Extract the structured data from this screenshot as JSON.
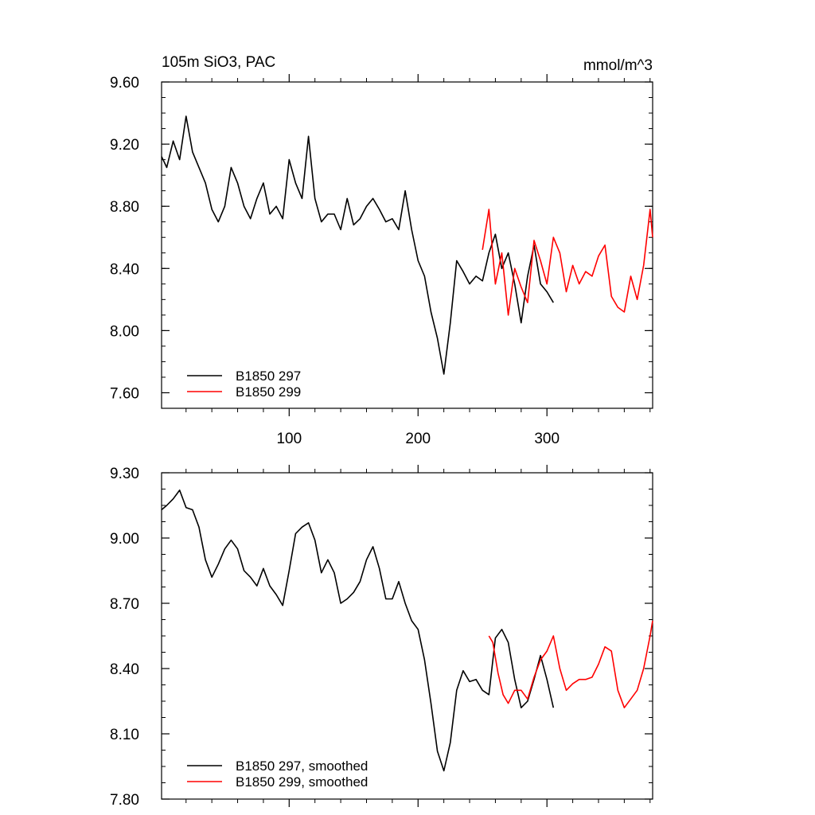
{
  "chart_data": [
    {
      "type": "line",
      "title": "105m SiO3, PAC",
      "units": "mmol/m^3",
      "xlim": [
        1,
        382
      ],
      "ylim": [
        7.5,
        9.6
      ],
      "yticks": [
        7.6,
        8.0,
        8.4,
        8.8,
        9.2,
        9.6
      ],
      "ytick_labels": [
        "7.60",
        "8.00",
        "8.40",
        "8.80",
        "9.20",
        "9.60"
      ],
      "xticks": [
        100,
        200,
        300
      ],
      "xtick_labels": [
        "100",
        "200",
        "300"
      ],
      "legend_position": "bottom-left",
      "series": [
        {
          "name": "B1850 297",
          "color": "#000000",
          "x": [
            1,
            5,
            10,
            15,
            20,
            25,
            30,
            35,
            40,
            45,
            50,
            55,
            60,
            65,
            70,
            75,
            80,
            85,
            90,
            95,
            100,
            105,
            110,
            115,
            120,
            125,
            130,
            135,
            140,
            145,
            150,
            155,
            160,
            165,
            170,
            175,
            180,
            185,
            190,
            195,
            200,
            205,
            210,
            215,
            220,
            225,
            230,
            235,
            240,
            245,
            250,
            255,
            260,
            265,
            270,
            275,
            280,
            285,
            290,
            295,
            300,
            305
          ],
          "y": [
            9.12,
            9.05,
            9.22,
            9.1,
            9.38,
            9.15,
            9.05,
            8.95,
            8.78,
            8.7,
            8.8,
            9.05,
            8.95,
            8.8,
            8.72,
            8.85,
            8.95,
            8.75,
            8.8,
            8.72,
            9.1,
            8.95,
            8.85,
            9.25,
            8.85,
            8.7,
            8.75,
            8.75,
            8.65,
            8.85,
            8.68,
            8.72,
            8.8,
            8.85,
            8.78,
            8.7,
            8.72,
            8.65,
            8.9,
            8.65,
            8.45,
            8.35,
            8.12,
            7.95,
            7.72,
            8.05,
            8.45,
            8.38,
            8.3,
            8.35,
            8.32,
            8.5,
            8.62,
            8.4,
            8.5,
            8.3,
            8.05,
            8.35,
            8.55,
            8.3,
            8.25,
            8.18
          ]
        },
        {
          "name": "B1850 299",
          "color": "#ff0000",
          "x": [
            250,
            255,
            260,
            265,
            270,
            275,
            280,
            285,
            290,
            295,
            300,
            305,
            310,
            315,
            320,
            325,
            330,
            335,
            340,
            345,
            350,
            355,
            360,
            365,
            370,
            375,
            380,
            382
          ],
          "y": [
            8.52,
            8.78,
            8.3,
            8.5,
            8.1,
            8.4,
            8.28,
            8.18,
            8.58,
            8.45,
            8.3,
            8.6,
            8.5,
            8.25,
            8.42,
            8.3,
            8.38,
            8.35,
            8.48,
            8.55,
            8.22,
            8.15,
            8.12,
            8.35,
            8.2,
            8.42,
            8.78,
            8.6
          ]
        }
      ]
    },
    {
      "type": "line",
      "xlim": [
        1,
        382
      ],
      "ylim": [
        7.8,
        9.3
      ],
      "yticks": [
        7.8,
        8.1,
        8.4,
        8.7,
        9.0,
        9.3
      ],
      "ytick_labels": [
        "7.80",
        "8.10",
        "8.40",
        "8.70",
        "9.00",
        "9.30"
      ],
      "xticks": [
        100,
        200,
        300
      ],
      "legend_position": "bottom-left",
      "series": [
        {
          "name": "B1850 297, smoothed",
          "color": "#000000",
          "x": [
            1,
            5,
            10,
            15,
            20,
            25,
            30,
            35,
            40,
            45,
            50,
            55,
            60,
            65,
            70,
            75,
            80,
            85,
            90,
            95,
            100,
            105,
            110,
            115,
            120,
            125,
            130,
            135,
            140,
            145,
            150,
            155,
            160,
            165,
            170,
            175,
            180,
            185,
            190,
            195,
            200,
            205,
            210,
            215,
            220,
            225,
            230,
            235,
            240,
            245,
            250,
            255,
            260,
            265,
            270,
            275,
            280,
            285,
            290,
            295,
            300,
            305
          ],
          "y": [
            9.13,
            9.15,
            9.18,
            9.22,
            9.14,
            9.13,
            9.05,
            8.9,
            8.82,
            8.88,
            8.95,
            8.99,
            8.95,
            8.85,
            8.82,
            8.78,
            8.86,
            8.78,
            8.74,
            8.69,
            8.85,
            9.02,
            9.05,
            9.07,
            8.99,
            8.84,
            8.9,
            8.84,
            8.7,
            8.72,
            8.75,
            8.8,
            8.9,
            8.96,
            8.86,
            8.72,
            8.72,
            8.8,
            8.7,
            8.62,
            8.58,
            8.44,
            8.24,
            8.02,
            7.93,
            8.06,
            8.3,
            8.39,
            8.34,
            8.35,
            8.3,
            8.28,
            8.54,
            8.58,
            8.52,
            8.35,
            8.22,
            8.25,
            8.35,
            8.46,
            8.35,
            8.22
          ]
        },
        {
          "name": "B1850 299, smoothed",
          "color": "#ff0000",
          "x": [
            255,
            258,
            262,
            266,
            270,
            275,
            280,
            285,
            290,
            295,
            300,
            305,
            310,
            315,
            320,
            325,
            330,
            335,
            340,
            345,
            350,
            355,
            360,
            365,
            370,
            375,
            380,
            382
          ],
          "y": [
            8.55,
            8.52,
            8.38,
            8.28,
            8.24,
            8.3,
            8.3,
            8.26,
            8.36,
            8.44,
            8.48,
            8.55,
            8.4,
            8.3,
            8.33,
            8.35,
            8.35,
            8.36,
            8.42,
            8.5,
            8.48,
            8.3,
            8.22,
            8.26,
            8.3,
            8.4,
            8.55,
            8.62
          ]
        }
      ]
    }
  ]
}
